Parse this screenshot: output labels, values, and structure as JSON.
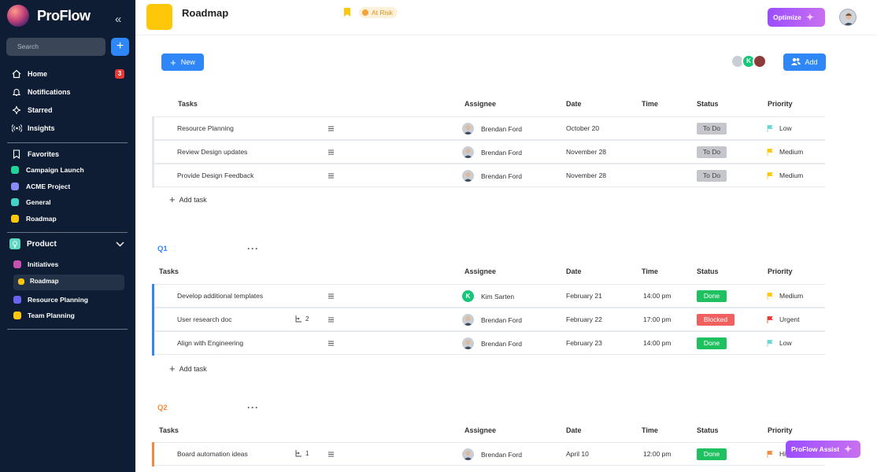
{
  "app": {
    "name": "ProFlow"
  },
  "sidebar": {
    "search_placeholder": "Search",
    "nav": [
      {
        "label": "Home",
        "badge": "3"
      },
      {
        "label": "Notifications"
      },
      {
        "label": "Starred"
      },
      {
        "label": "Insights"
      }
    ],
    "favorites_label": "Favorites",
    "favorites": [
      {
        "label": "Campaign Launch",
        "color": "#20d39a"
      },
      {
        "label": "ACME Project",
        "color": "#8a8cf5"
      },
      {
        "label": "General",
        "color": "#43d3c8"
      },
      {
        "label": "Roadmap",
        "color": "#ffc70a"
      }
    ],
    "workspace": {
      "label": "Product",
      "color": "#5fd8c0"
    },
    "workspace_items": [
      {
        "label": "Initiatives",
        "color": "#c94fb0"
      },
      {
        "label": "Roadmap",
        "color": "#ffc70a"
      },
      {
        "label": "Resource Planning",
        "color": "#6b62f0"
      },
      {
        "label": "Team Planning",
        "color": "#ffc70a"
      }
    ]
  },
  "header": {
    "title": "Roadmap",
    "status": "At Risk",
    "optimize_label": "Optimize"
  },
  "toolbar": {
    "new_label": "New",
    "add_label": "Add",
    "avatar_k": "K"
  },
  "columns": {
    "tasks": "Tasks",
    "assignee": "Assignee",
    "date": "Date",
    "time": "Time",
    "status": "Status",
    "priority": "Priority"
  },
  "groups": [
    {
      "title": "",
      "rows": [
        {
          "task": "Resource Planning",
          "assignee": "Brendan Ford",
          "date": "October 20",
          "time": "",
          "status": "To Do",
          "priority": "Low"
        },
        {
          "task": "Review Design updates",
          "assignee": "Brendan Ford",
          "date": "November 28",
          "time": "",
          "status": "To Do",
          "priority": "Medium"
        },
        {
          "task": "Provide Design Feedback",
          "assignee": "Brendan Ford",
          "date": "November 28",
          "time": "",
          "status": "To Do",
          "priority": "Medium"
        }
      ],
      "add_task": "Add task"
    },
    {
      "title": "Q1",
      "color": "#2e86f7",
      "rows": [
        {
          "task": "Develop additional templates",
          "assignee": "Kim Sarten",
          "date": "February 21",
          "time": "14:00 pm",
          "status": "Done",
          "priority": "Medium"
        },
        {
          "task": "User research doc",
          "subtasks": "2",
          "assignee": "Brendan Ford",
          "date": "February 22",
          "time": "17:00 pm",
          "status": "Blocked",
          "priority": "Urgent"
        },
        {
          "task": "Align with Engineering",
          "assignee": "Brendan Ford",
          "date": "February 23",
          "time": "14:00 pm",
          "status": "Done",
          "priority": "Low"
        }
      ],
      "add_task": "Add task"
    },
    {
      "title": "Q2",
      "color": "#f58a3c",
      "rows": [
        {
          "task": "Board automation ideas",
          "subtasks": "1",
          "assignee": "Brendan Ford",
          "date": "April 10",
          "time": "12:00 pm",
          "status": "Done",
          "priority": "High"
        }
      ]
    }
  ],
  "assist_label": "ProFlow Assist"
}
